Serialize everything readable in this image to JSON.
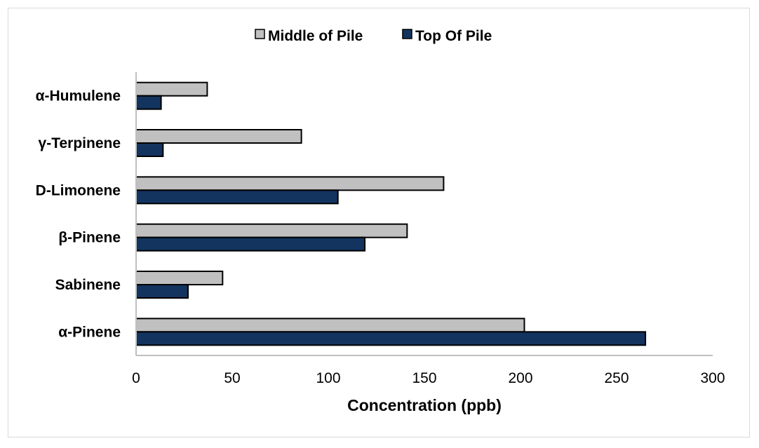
{
  "chart_data": {
    "type": "bar",
    "orientation": "horizontal",
    "categories": [
      "α-Pinene",
      "Sabinene",
      "β-Pinene",
      "D-Limonene",
      "γ-Terpinene",
      "α-Humulene"
    ],
    "series": [
      {
        "name": "Middle of Pile",
        "color": "#c0c0c0",
        "values": [
          202,
          45,
          141,
          160,
          86,
          37
        ]
      },
      {
        "name": "Top Of Pile",
        "color": "#12345f",
        "values": [
          265,
          27,
          119,
          105,
          14,
          13
        ]
      }
    ],
    "title": "",
    "xlabel": "Concentration (ppb)",
    "ylabel": "",
    "xlim": [
      0,
      300
    ],
    "xticks": [
      "0",
      "50",
      "100",
      "150",
      "200",
      "250",
      "300"
    ],
    "grid": false,
    "legend_position": "top"
  }
}
